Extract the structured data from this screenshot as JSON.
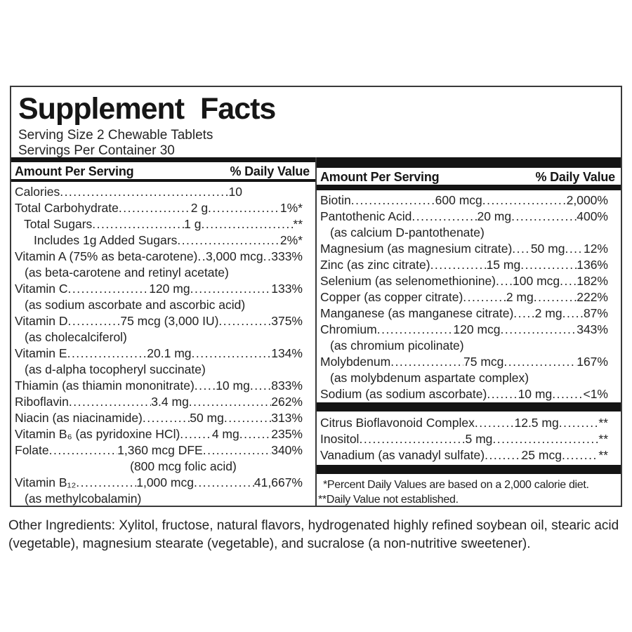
{
  "title": "Supplement Facts",
  "serving": {
    "size": "Serving Size 2 Chewable Tablets",
    "per_container": "Servings Per Container 30"
  },
  "columns": {
    "amount_header": "Amount Per Serving",
    "dv_header": "% Daily Value"
  },
  "left_rows": [
    {
      "name": "Calories",
      "amount": "10"
    },
    {
      "name": "Total Carbohydrate",
      "amount": "2 g",
      "pct": "1%*"
    },
    {
      "name": "Total Sugars",
      "amount": "1 g",
      "pct": "**"
    },
    {
      "name": "Includes 1g Added Sugars",
      "pct": "2%*"
    },
    {
      "name": "Vitamin A (75% as beta-carotene)",
      "amount": "3,000 mcg",
      "pct": "333%"
    },
    {
      "sub": "(as beta-carotene and retinyl acetate)"
    },
    {
      "name": "Vitamin C",
      "amount": "120 mg",
      "pct": "133%"
    },
    {
      "sub": "(as sodium ascorbate and ascorbic acid)"
    },
    {
      "name": "Vitamin D",
      "amount": "75 mcg (3,000 IU)",
      "pct": "375%"
    },
    {
      "sub": "(as cholecalciferol)"
    },
    {
      "name": "Vitamin E",
      "amount": "20.1 mg",
      "pct": "134%"
    },
    {
      "sub": "(as d-alpha tocopheryl succinate)"
    },
    {
      "name": "Thiamin (as thiamin mononitrate)",
      "amount": "10 mg",
      "pct": "833%"
    },
    {
      "name": "Riboflavin",
      "amount": "3.4 mg",
      "pct": "262%"
    },
    {
      "name": "Niacin (as niacinamide)",
      "amount": "50 mg",
      "pct": "313%"
    },
    {
      "name": "Vitamin B₆ (as pyridoxine HCl)",
      "amount": "4 mg",
      "pct": "235%"
    },
    {
      "name": "Folate",
      "amount": "1,360 mcg DFE",
      "pct": "340%"
    },
    {
      "sub": "(800 mcg folic acid)"
    },
    {
      "name": "Vitamin B₁₂",
      "amount": "1,000 mcg",
      "pct": "41,667%"
    },
    {
      "sub": "(as methylcobalamin)"
    }
  ],
  "right_rows": [
    {
      "name": "Biotin",
      "amount": "600 mcg",
      "pct": "2,000%"
    },
    {
      "name": "Pantothenic Acid",
      "amount": "20 mg",
      "pct": "400%"
    },
    {
      "sub": "(as calcium D-pantothenate)"
    },
    {
      "name": "Magnesium (as magnesium citrate)",
      "amount": "50 mg",
      "pct": "12%"
    },
    {
      "name": "Zinc (as zinc citrate)",
      "amount": "15 mg",
      "pct": "136%"
    },
    {
      "name": "Selenium (as selenomethionine)",
      "amount": "100 mcg",
      "pct": "182%"
    },
    {
      "name": "Copper (as copper citrate)",
      "amount": "2 mg",
      "pct": "222%"
    },
    {
      "name": "Manganese (as manganese citrate)",
      "amount": "2 mg",
      "pct": "87%"
    },
    {
      "name": "Chromium",
      "amount": "120 mcg",
      "pct": "343%"
    },
    {
      "sub": "(as chromium picolinate)"
    },
    {
      "name": "Molybdenum",
      "amount": "75 mcg",
      "pct": "167%"
    },
    {
      "sub": "(as molybdenum aspartate complex)"
    },
    {
      "name": "Sodium (as sodium ascorbate)",
      "amount": "10 mg",
      "pct": "<1%"
    }
  ],
  "right_extra_rows": [
    {
      "name": "Citrus Bioflavonoid Complex",
      "amount": "12.5 mg",
      "pct": "**"
    },
    {
      "name": "Inositol",
      "amount": "5 mg",
      "pct": "**"
    },
    {
      "name": "Vanadium (as vanadyl sulfate)",
      "amount": "25 mcg",
      "pct": "**"
    }
  ],
  "footnotes": [
    "*Percent Daily Values are based on a 2,000 calorie diet.",
    "**Daily Value not established."
  ],
  "other_ingredients": "Other Ingredients: Xylitol, fructose, natural flavors, hydrogenated highly refined soybean oil, stearic acid (vegetable), magnesium stearate (vegetable), and sucralose (a non-nutritive sweetener)."
}
